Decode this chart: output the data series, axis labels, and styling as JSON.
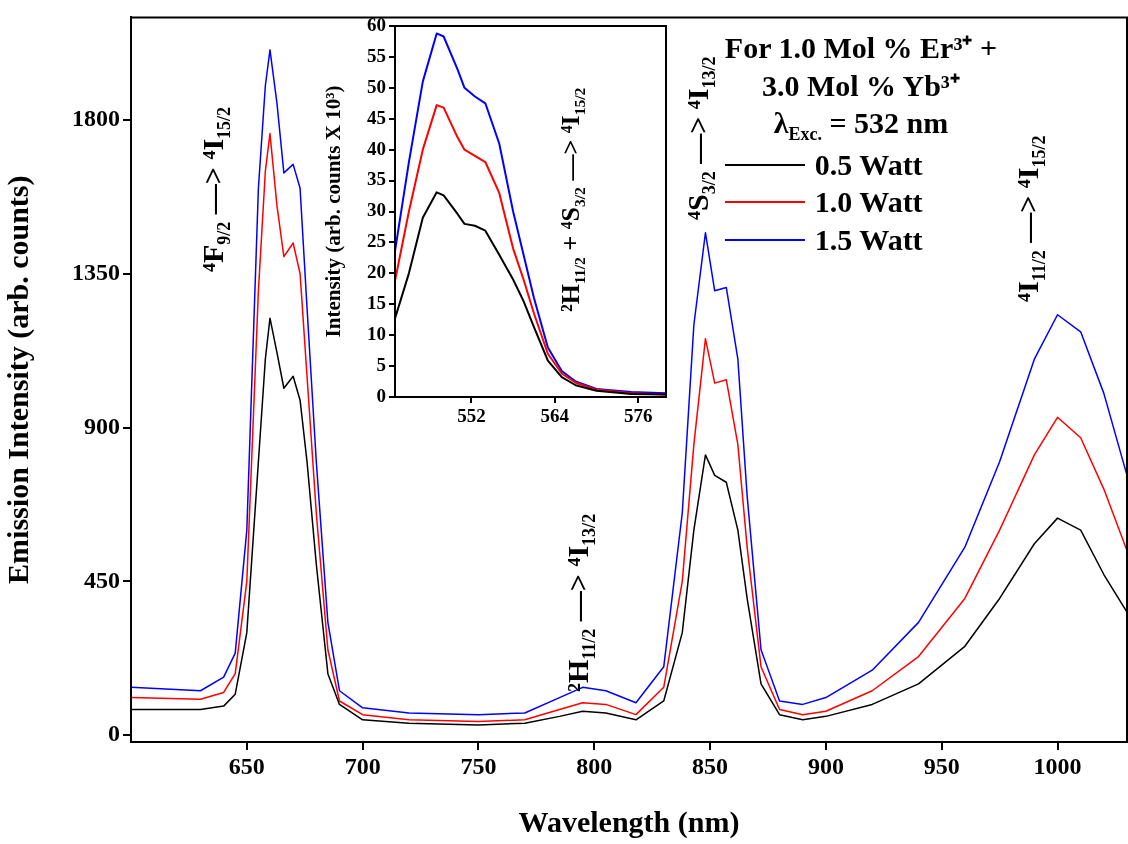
{
  "chart_data": [
    {
      "type": "line",
      "xlabel": "Wavelength (nm)",
      "ylabel": "Emission Intensity (arb. counts)",
      "legend": "top right",
      "legend_title": "For 1.0 Mol % Er³⁺ +\n3.0 Mol % Yb³⁺\nλ$_{Exc.}$ = 532 nm",
      "grid": false,
      "xlim": [
        600,
        1030
      ],
      "xticks": [
        650,
        700,
        750,
        800,
        850,
        900,
        950,
        1000
      ],
      "ylim": [
        -20,
        2100
      ],
      "yticks": [
        0,
        450,
        900,
        1350,
        1800
      ],
      "x": [
        600,
        630,
        640,
        645,
        650,
        655,
        658,
        660,
        663,
        666,
        670,
        673,
        676,
        680,
        685,
        690,
        700,
        720,
        750,
        770,
        785,
        795,
        805,
        818,
        830,
        838,
        843,
        848,
        852,
        857,
        862,
        866,
        872,
        880,
        890,
        900,
        920,
        940,
        960,
        975,
        990,
        1000,
        1010,
        1020,
        1030
      ],
      "series": [
        {
          "name": "0.5 Watt",
          "color": "#000000",
          "values": [
            75,
            75,
            85,
            120,
            300,
            800,
            1100,
            1220,
            1120,
            1015,
            1050,
            980,
            800,
            500,
            180,
            90,
            45,
            35,
            30,
            35,
            55,
            70,
            65,
            45,
            100,
            300,
            600,
            820,
            760,
            740,
            600,
            400,
            150,
            60,
            45,
            55,
            90,
            150,
            260,
            400,
            560,
            635,
            600,
            470,
            360
          ]
        },
        {
          "name": "1.0 Watt",
          "color": "#ff0000",
          "values": [
            110,
            105,
            125,
            180,
            450,
            1300,
            1650,
            1760,
            1550,
            1400,
            1440,
            1350,
            1050,
            650,
            250,
            100,
            60,
            45,
            40,
            45,
            75,
            95,
            90,
            60,
            140,
            450,
            850,
            1160,
            1030,
            1040,
            850,
            550,
            200,
            75,
            60,
            70,
            130,
            230,
            400,
            600,
            820,
            930,
            870,
            720,
            540
          ]
        },
        {
          "name": "1.5 Watt",
          "color": "#0000ff",
          "values": [
            140,
            130,
            170,
            240,
            600,
            1600,
            1900,
            2005,
            1850,
            1645,
            1670,
            1600,
            1250,
            800,
            330,
            130,
            80,
            65,
            60,
            65,
            110,
            140,
            130,
            95,
            200,
            650,
            1200,
            1470,
            1300,
            1310,
            1100,
            700,
            250,
            100,
            90,
            110,
            190,
            330,
            550,
            800,
            1100,
            1230,
            1180,
            1000,
            760
          ]
        }
      ],
      "annotations": [
        "⁴F$_{9/2}$ —> ⁴I$_{15/2}$",
        "²H$_{11/2}$ —> ⁴I$_{13/2}$",
        "⁴S$_{3/2}$ —> ⁴I$_{13/2}$",
        "⁴I$_{11/2}$ —> ⁴I$_{15/2}$"
      ]
    },
    {
      "type": "line",
      "ylabel": "Intensity (arb. counts X 10³)",
      "grid": false,
      "xlim": [
        541,
        580
      ],
      "xticks": [
        552,
        564,
        576
      ],
      "ylim": [
        0,
        60
      ],
      "yticks": [
        0,
        5,
        10,
        15,
        20,
        25,
        30,
        35,
        40,
        45,
        50,
        55,
        60
      ],
      "x": [
        541,
        543,
        545,
        547,
        548,
        550,
        551,
        552.5,
        554,
        556,
        558,
        559.5,
        561,
        563,
        565,
        567,
        570,
        575,
        580
      ],
      "series": [
        {
          "color": "#000000",
          "values": [
            12.7,
            20,
            29,
            33.1,
            32.6,
            29.6,
            28,
            27.7,
            26.9,
            23,
            19,
            15.5,
            11.3,
            5.9,
            3.2,
            1.9,
            1,
            0.5,
            0.4
          ]
        },
        {
          "color": "#ff0000",
          "values": [
            18.8,
            30,
            40,
            47.2,
            46.8,
            42,
            40,
            39,
            38,
            33,
            24,
            19,
            13.5,
            7,
            3.8,
            2.3,
            1.2,
            0.6,
            0.4
          ]
        },
        {
          "color": "#0000ff",
          "values": [
            23.6,
            38,
            51,
            58.8,
            58.3,
            53,
            50,
            48.6,
            47.5,
            41,
            30,
            23,
            16,
            8,
            4.2,
            2.5,
            1.3,
            0.8,
            0.6
          ]
        }
      ],
      "annotations": [
        "²H$_{11/2}$ + ⁴S$_{3/2}$ —> ⁴I$_{15/2}$"
      ]
    }
  ]
}
